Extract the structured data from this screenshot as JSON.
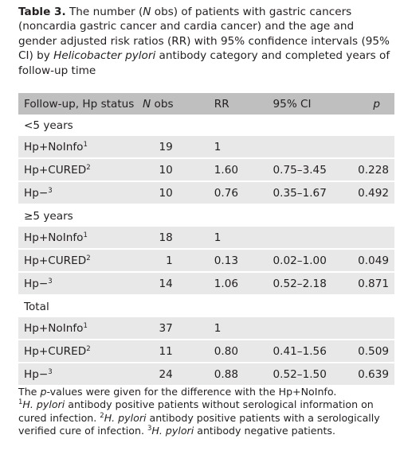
{
  "caption": {
    "label": "Table 3.",
    "t1": " The number (",
    "t2": "N",
    "t3": " obs) of patients with gastric cancers (noncardia gastric cancer and cardia cancer) and the age and gender adjusted risk ratios (RR) with 95% confidence intervals (95% CI) by ",
    "t4": "Helicobacter pylori",
    "t5": " antibody category and completed years of follow-up time"
  },
  "headers": {
    "followup": "Follow-up, Hp status",
    "n_obs_italic": "N",
    "n_obs_rest": " obs",
    "rr": "RR",
    "ci": "95% CI",
    "p": "p"
  },
  "sections": [
    {
      "title": "<5 years",
      "rows": [
        {
          "status": "Hp+NoInfo",
          "sup": "1",
          "n": "19",
          "rr": "1",
          "ci": "",
          "p": ""
        },
        {
          "status": "Hp+CURED",
          "sup": "2",
          "n": "10",
          "rr": "1.60",
          "ci": "0.75–3.45",
          "p": "0.228"
        },
        {
          "status": "Hp−",
          "sup": "3",
          "n": "10",
          "rr": "0.76",
          "ci": "0.35–1.67",
          "p": "0.492"
        }
      ]
    },
    {
      "title": "≥5 years",
      "rows": [
        {
          "status": "Hp+NoInfo",
          "sup": "1",
          "n": "18",
          "rr": "1",
          "ci": "",
          "p": ""
        },
        {
          "status": "Hp+CURED",
          "sup": "2",
          "n": "1",
          "rr": "0.13",
          "ci": "0.02–1.00",
          "p": "0.049"
        },
        {
          "status": "Hp−",
          "sup": "3",
          "n": "14",
          "rr": "1.06",
          "ci": "0.52–2.18",
          "p": "0.871"
        }
      ]
    },
    {
      "title": "Total",
      "rows": [
        {
          "status": "Hp+NoInfo",
          "sup": "1",
          "n": "37",
          "rr": "1",
          "ci": "",
          "p": ""
        },
        {
          "status": "Hp+CURED",
          "sup": "2",
          "n": "11",
          "rr": "0.80",
          "ci": "0.41–1.56",
          "p": "0.509"
        },
        {
          "status": "Hp−",
          "sup": "3",
          "n": "24",
          "rr": "0.88",
          "ci": "0.52–1.50",
          "p": "0.639"
        }
      ]
    }
  ],
  "notes": {
    "line1_a": "The ",
    "line1_b": "p",
    "line1_c": "-values were given for the difference with the Hp+NoInfo.",
    "n1_sup": "1",
    "n1_it": "H. pylori",
    "n1_rest": " antibody positive patients without serological information on cured infection. ",
    "n2_sup": "2",
    "n2_it": "H. pylori",
    "n2_rest": " antibody positive patients with a serologically verified cure of infection. ",
    "n3_sup": "3",
    "n3_it": "H. pylori",
    "n3_rest": " antibody negative patients."
  }
}
